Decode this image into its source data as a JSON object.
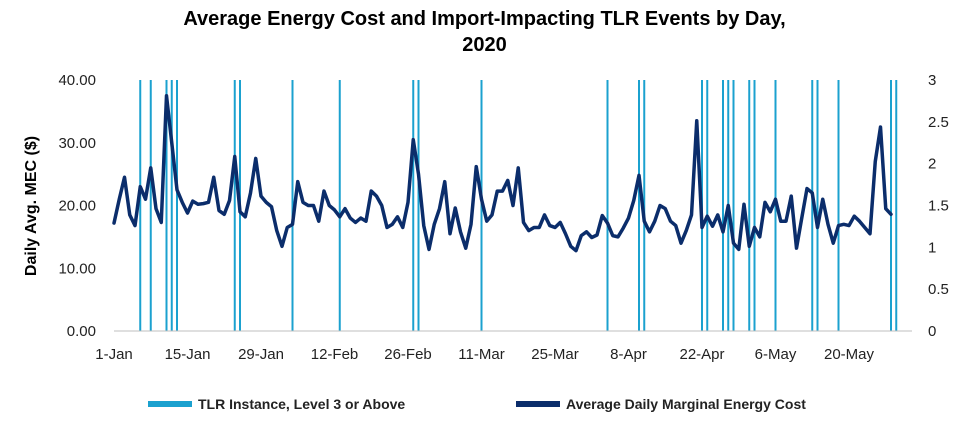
{
  "chart_data": {
    "type": "line",
    "title_lines": [
      "Average Energy Cost and Import-Impacting TLR Events by Day,",
      "2020"
    ],
    "ylabel": "Daily Avg. MEC ($)",
    "ylim": [
      0,
      40
    ],
    "yticks": [
      "0.00",
      "10.00",
      "20.00",
      "30.00",
      "40.00"
    ],
    "y2lim": [
      0,
      3
    ],
    "y2ticks": [
      "0",
      "0.5",
      "1",
      "1.5",
      "2",
      "2.5",
      "3"
    ],
    "xlim": [
      0,
      152
    ],
    "xticks": [
      {
        "day": 0,
        "label": "1-Jan"
      },
      {
        "day": 14,
        "label": "15-Jan"
      },
      {
        "day": 28,
        "label": "29-Jan"
      },
      {
        "day": 42,
        "label": "12-Feb"
      },
      {
        "day": 56,
        "label": "26-Feb"
      },
      {
        "day": 70,
        "label": "11-Mar"
      },
      {
        "day": 84,
        "label": "25-Mar"
      },
      {
        "day": 98,
        "label": "8-Apr"
      },
      {
        "day": 112,
        "label": "22-Apr"
      },
      {
        "day": 126,
        "label": "6-May"
      },
      {
        "day": 140,
        "label": "20-May"
      }
    ],
    "series": [
      {
        "name": "Average Daily Marginal Energy Cost",
        "color": "#0b2d6b",
        "axis": "left",
        "values": [
          17.2,
          21.0,
          24.5,
          18.5,
          16.8,
          23.0,
          21.0,
          26.0,
          19.5,
          17.3,
          37.5,
          30.0,
          22.5,
          20.5,
          18.8,
          20.7,
          20.2,
          20.3,
          20.5,
          24.5,
          19.2,
          18.6,
          20.8,
          27.8,
          19.0,
          18.2,
          22.0,
          27.5,
          21.5,
          20.5,
          19.8,
          16.0,
          13.5,
          16.5,
          17.0,
          23.8,
          20.5,
          20.0,
          20.0,
          17.5,
          22.3,
          20.0,
          19.3,
          18.2,
          19.5,
          18.0,
          17.3,
          18.0,
          17.5,
          22.3,
          21.5,
          20.0,
          16.5,
          17.0,
          18.2,
          16.5,
          20.5,
          30.5,
          25.0,
          16.8,
          13.0,
          17.0,
          19.5,
          23.8,
          15.5,
          19.6,
          15.8,
          13.2,
          17.0,
          26.2,
          21.0,
          17.5,
          18.5,
          22.3,
          22.3,
          24.0,
          20.0,
          26.0,
          17.3,
          16.0,
          16.5,
          16.5,
          18.5,
          16.8,
          16.5,
          17.3,
          15.5,
          13.5,
          12.8,
          15.2,
          15.8,
          14.9,
          15.3,
          18.4,
          17.2,
          15.2,
          15.0,
          16.4,
          18.0,
          20.8,
          24.8,
          17.5,
          15.8,
          17.5,
          20.0,
          19.5,
          17.5,
          16.8,
          14.0,
          16.0,
          18.5,
          33.5,
          16.5,
          18.3,
          16.7,
          18.5,
          15.8,
          20.0,
          14.0,
          13.0,
          20.2,
          13.5,
          16.5,
          15.0,
          20.5,
          19.0,
          21.0,
          17.5,
          17.5,
          21.5,
          13.2,
          18.0,
          22.7,
          22.0,
          16.5,
          21.0,
          17.0,
          14.0,
          16.8,
          17.0,
          16.8,
          18.3,
          17.5,
          16.5,
          15.5,
          27.0,
          32.5,
          19.5,
          18.6
        ]
      }
    ],
    "tlr_label": "TLR Instance, Level 3 or Above",
    "tlr_color": "#1ba1cf",
    "tlr_days": [
      5,
      7,
      10,
      11,
      12,
      23,
      24,
      34,
      43,
      57,
      58,
      70,
      94,
      100,
      101,
      112,
      113,
      116,
      117,
      118,
      121,
      122,
      126,
      133,
      134,
      138,
      148,
      149
    ]
  }
}
